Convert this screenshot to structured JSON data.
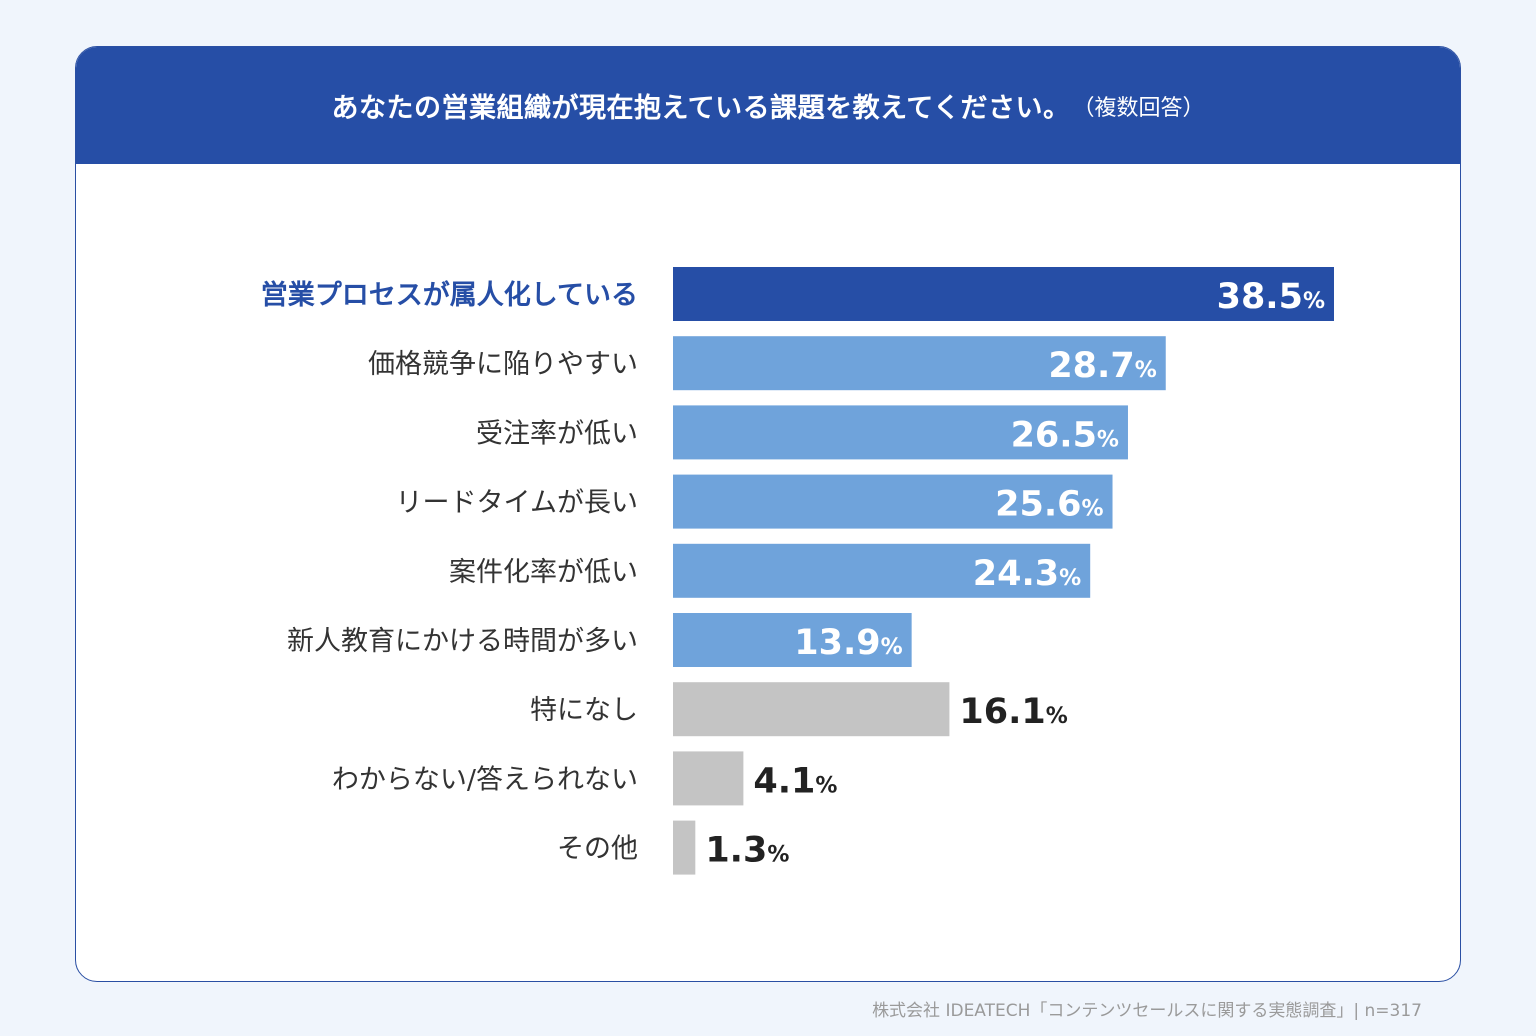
{
  "header": {
    "title": "あなたの営業組織が現在抱えている課題を教えてください。",
    "note": "（複数回答）"
  },
  "footer": {
    "source": "株式会社 IDEATECH「コンテンツセールスに関する実態調査」| n=317"
  },
  "colors": {
    "header_bg": "#264ea6",
    "top_bar": "#264ea6",
    "blue_bar": "#6fa3db",
    "gray_bar": "#c4c4c4",
    "highlight_label": "#264ea6",
    "label": "#333333",
    "value_dark": "#222222",
    "value_light": "#ffffff"
  },
  "chart_data": {
    "type": "bar",
    "orientation": "horizontal",
    "unit": "%",
    "xlim": [
      0,
      40
    ],
    "categories": [
      "営業プロセスが属人化している",
      "価格競争に陥りやすい",
      "受注率が低い",
      "リードタイムが長い",
      "案件化率が低い",
      "新人教育にかける時間が多い",
      "特になし",
      "わからない/答えられない",
      "その他"
    ],
    "values": [
      38.5,
      28.7,
      26.5,
      25.6,
      24.3,
      13.9,
      16.1,
      4.1,
      1.3
    ],
    "value_labels": [
      "38.5",
      "28.7",
      "26.5",
      "25.6",
      "24.3",
      "13.9",
      "16.1",
      "4.1",
      "1.3"
    ],
    "bar_styles": [
      "top",
      "blue",
      "blue",
      "blue",
      "blue",
      "blue",
      "gray",
      "gray",
      "gray"
    ]
  }
}
